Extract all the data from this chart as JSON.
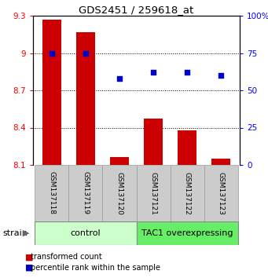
{
  "title": "GDS2451 / 259618_at",
  "samples": [
    "GSM137118",
    "GSM137119",
    "GSM137120",
    "GSM137121",
    "GSM137122",
    "GSM137123"
  ],
  "transformed_counts": [
    9.27,
    9.17,
    8.16,
    8.47,
    8.38,
    8.15
  ],
  "percentile_ranks": [
    75,
    75,
    58,
    62,
    62,
    60
  ],
  "bar_bottom": 8.1,
  "ylim_left": [
    8.1,
    9.3
  ],
  "ylim_right": [
    0,
    100
  ],
  "yticks_left": [
    8.1,
    8.4,
    8.7,
    9.0,
    9.3
  ],
  "ytick_labels_left": [
    "8.1",
    "8.4",
    "8.7",
    "9",
    "9.3"
  ],
  "yticks_right": [
    0,
    25,
    50,
    75,
    100
  ],
  "ytick_labels_right": [
    "0",
    "25",
    "50",
    "75",
    "100%"
  ],
  "bar_color": "#cc0000",
  "dot_color": "#0000cc",
  "control_bg": "#ccffcc",
  "tac1_bg": "#66ee66",
  "sample_bg": "#cccccc",
  "group_label_control": "control",
  "group_label_tac1": "TAC1 overexpressing",
  "strain_label": "strain",
  "legend_bar": "transformed count",
  "legend_dot": "percentile rank within the sample",
  "grid_lines": [
    9.0,
    8.7,
    8.4
  ]
}
